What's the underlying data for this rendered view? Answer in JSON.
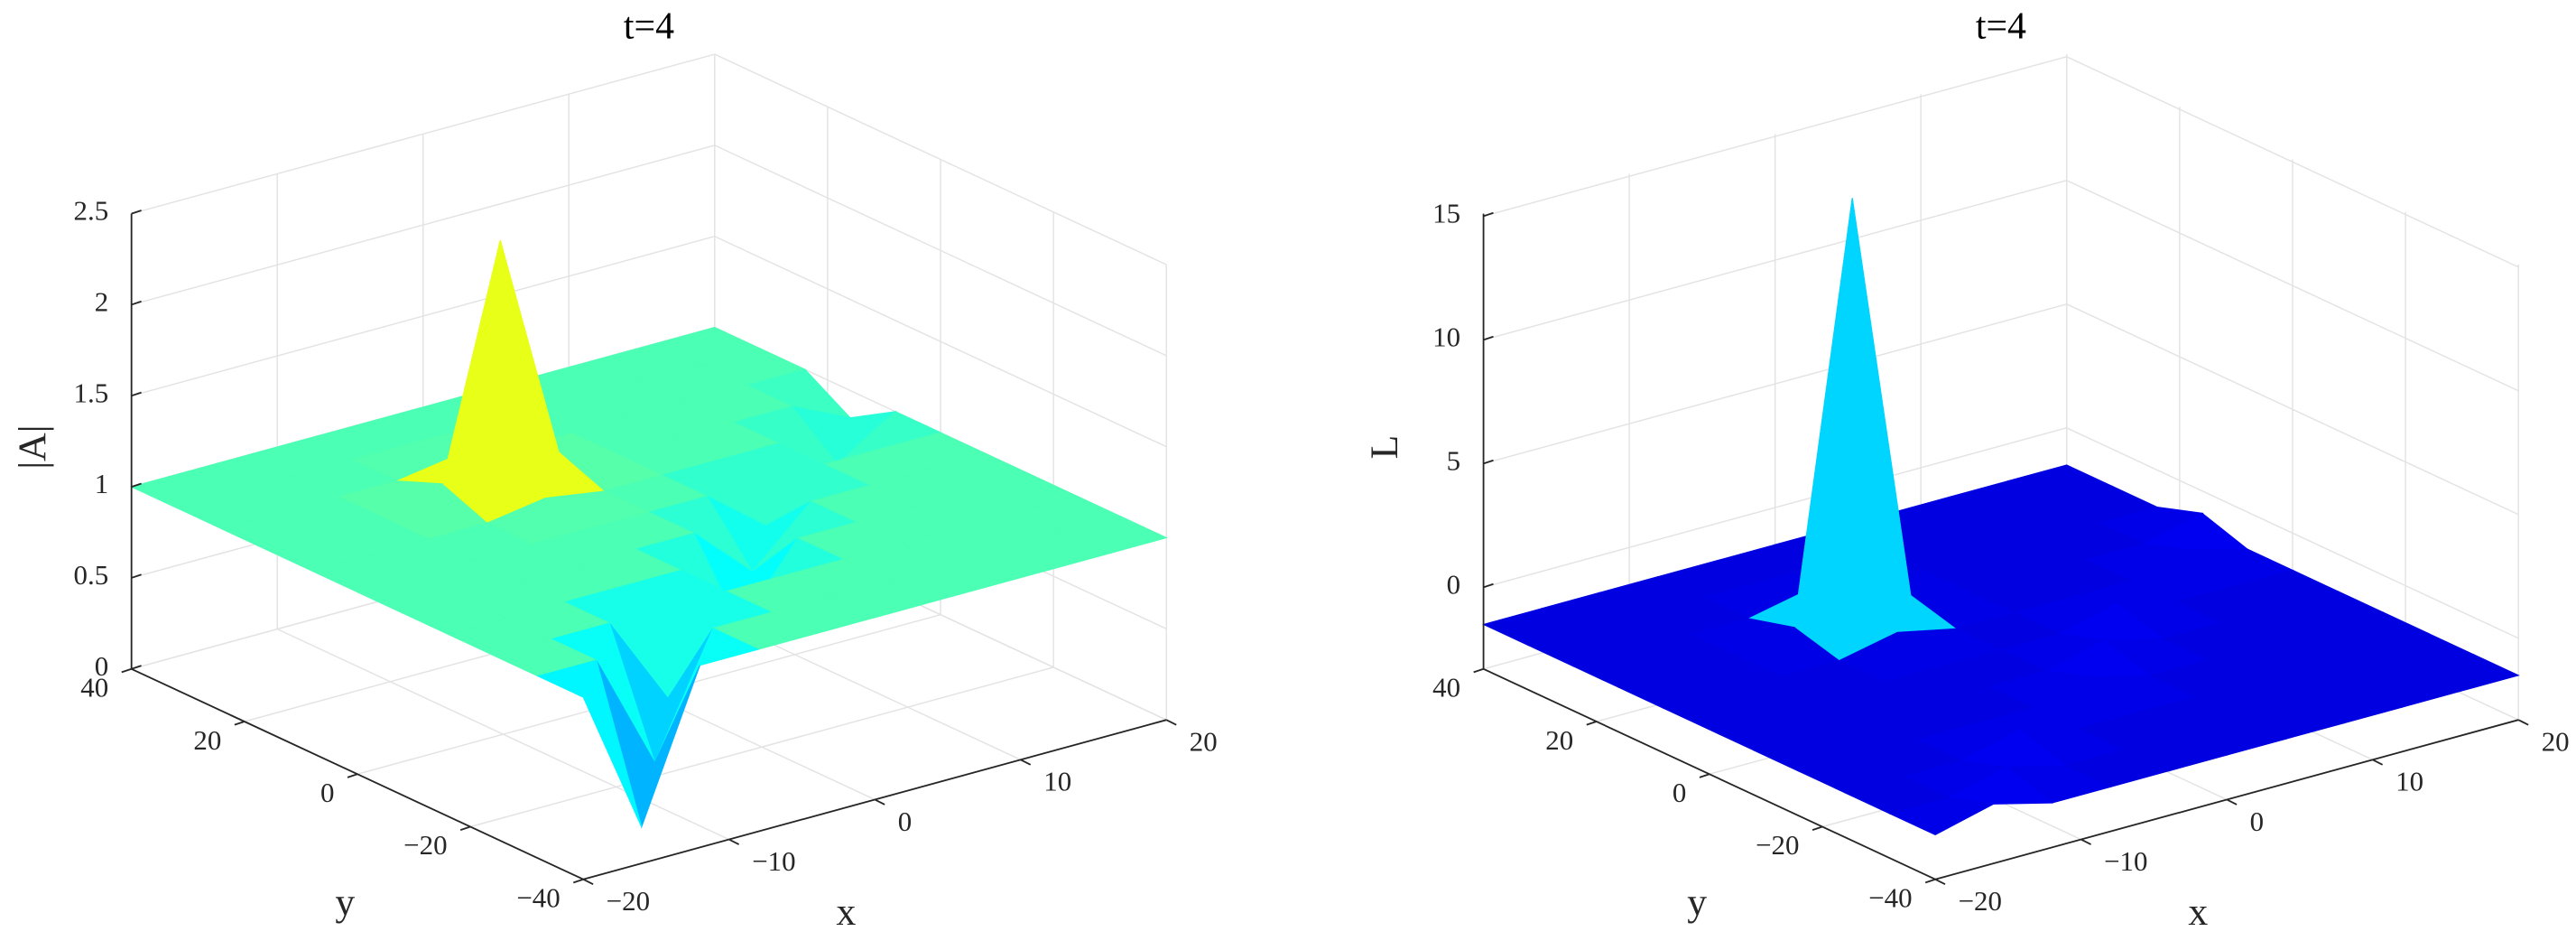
{
  "chart_data": [
    {
      "type": "surface",
      "title": "t=4",
      "xlabel": "x",
      "ylabel": "y",
      "zlabel": "|A|",
      "colormap": "jet",
      "clim": [
        -0.1,
        2.35
      ],
      "grid": true,
      "x": [
        -20,
        -16,
        -12,
        -8,
        -4,
        0,
        4,
        8,
        12,
        16,
        20
      ],
      "y": [
        -40,
        -32,
        -24,
        -16,
        -8,
        0,
        8,
        16,
        24,
        32,
        40
      ],
      "z": [
        [
          1,
          0.2,
          1,
          1,
          1,
          1,
          1,
          1,
          1,
          1,
          1
        ],
        [
          1,
          1,
          0.35,
          1,
          1,
          1,
          1,
          1,
          1,
          1,
          1
        ],
        [
          1,
          1,
          1,
          0.5,
          1,
          1,
          1,
          1,
          1,
          1,
          1
        ],
        [
          1,
          1,
          1,
          1,
          1,
          0.6,
          1,
          1,
          1,
          1,
          1
        ],
        [
          1,
          1,
          1,
          1,
          1,
          1,
          0.7,
          1,
          1,
          1,
          1
        ],
        [
          1,
          1,
          1,
          1,
          1,
          1,
          1,
          0.75,
          1,
          1,
          1
        ],
        [
          1,
          1,
          1,
          1,
          1.05,
          1,
          1,
          1,
          1,
          0.8,
          1
        ],
        [
          1,
          1,
          1,
          1.1,
          2.35,
          1.1,
          1,
          1,
          1,
          1,
          0.85
        ],
        [
          1,
          1,
          1,
          1,
          1.05,
          1,
          1,
          1,
          1,
          1,
          1
        ],
        [
          1,
          1,
          1,
          1,
          1,
          1,
          1,
          1,
          1,
          1,
          1
        ],
        [
          1,
          1,
          1,
          1,
          1,
          1,
          1,
          1,
          1,
          1,
          1
        ]
      ],
      "xlim": [
        -20,
        20
      ],
      "ylim": [
        -40,
        40
      ],
      "zlim": [
        0,
        2.5
      ],
      "xticks": [
        {
          "value": -20,
          "label": "−20"
        },
        {
          "value": -10,
          "label": "−10"
        },
        0,
        10,
        20
      ],
      "yticks": [
        {
          "value": -40,
          "label": "−40"
        },
        {
          "value": -20,
          "label": "−20"
        },
        0,
        20,
        40
      ],
      "zticks": [
        0,
        0.5,
        1,
        1.5,
        2,
        2.5
      ]
    },
    {
      "type": "surface",
      "title": "t=4",
      "xlabel": "x",
      "ylabel": "y",
      "zlabel": "L",
      "colormap": "jet",
      "clim": [
        -3.3,
        15.7
      ],
      "grid": true,
      "x": [
        -20,
        -16,
        -12,
        -8,
        -4,
        0,
        4,
        8,
        12,
        16,
        20
      ],
      "y": [
        -40,
        -32,
        -24,
        -16,
        -8,
        0,
        8,
        16,
        24,
        32,
        40
      ],
      "z": [
        [
          -1.5,
          -0.9,
          -1.5,
          -1.5,
          -1.5,
          -1.5,
          -1.5,
          -1.5,
          -1.5,
          -1.5,
          -1.5
        ],
        [
          -1.5,
          -1.5,
          -0.9,
          -1.5,
          -1.5,
          -1.5,
          -1.5,
          -1.5,
          -1.5,
          -1.5,
          -1.5
        ],
        [
          -1.5,
          -1.5,
          -1.5,
          -0.9,
          -1.5,
          -1.5,
          -1.5,
          -1.5,
          -1.5,
          -1.5,
          -1.5
        ],
        [
          -1.5,
          -1.5,
          -1.5,
          -1.5,
          -1.5,
          -0.9,
          -1.5,
          -1.5,
          -1.5,
          -1.5,
          -1.5
        ],
        [
          -1.5,
          -1.5,
          -1.5,
          -1.5,
          -1.5,
          -1.5,
          -0.9,
          -1.5,
          -1.5,
          -1.5,
          -1.5
        ],
        [
          -1.5,
          -1.5,
          -1.5,
          -1.5,
          -1.5,
          -1.5,
          -1.5,
          -0.9,
          -1.5,
          -1.5,
          -1.5
        ],
        [
          -1.5,
          -1.5,
          -1.5,
          -1.5,
          -1.0,
          -1.5,
          -1.5,
          -1.5,
          -1.5,
          -0.9,
          -1.5
        ],
        [
          -1.5,
          -1.5,
          -1.5,
          -1.0,
          15.7,
          -1.0,
          -1.5,
          -1.5,
          -1.5,
          -1.5,
          -0.9
        ],
        [
          -1.5,
          -1.5,
          -1.5,
          -1.5,
          -1.0,
          -1.5,
          -1.5,
          -1.5,
          -1.5,
          -1.5,
          -1.5
        ],
        [
          -1.5,
          -1.5,
          -1.5,
          -1.5,
          -1.5,
          -1.5,
          -1.5,
          -1.5,
          -1.5,
          -1.5,
          -1.5
        ],
        [
          -1.5,
          -1.5,
          -1.5,
          -1.5,
          -1.5,
          -1.5,
          -1.5,
          -1.5,
          -1.5,
          -1.5,
          -1.5
        ]
      ],
      "xlim": [
        -20,
        20
      ],
      "ylim": [
        -40,
        40
      ],
      "zlim": [
        -3.3,
        15.1
      ],
      "xticks": [
        {
          "value": -20,
          "label": "−20"
        },
        {
          "value": -10,
          "label": "−10"
        },
        0,
        10,
        20
      ],
      "yticks": [
        {
          "value": -40,
          "label": "−40"
        },
        {
          "value": -20,
          "label": "−20"
        },
        0,
        20,
        40
      ],
      "zticks": [
        0,
        5,
        10,
        15
      ]
    }
  ]
}
